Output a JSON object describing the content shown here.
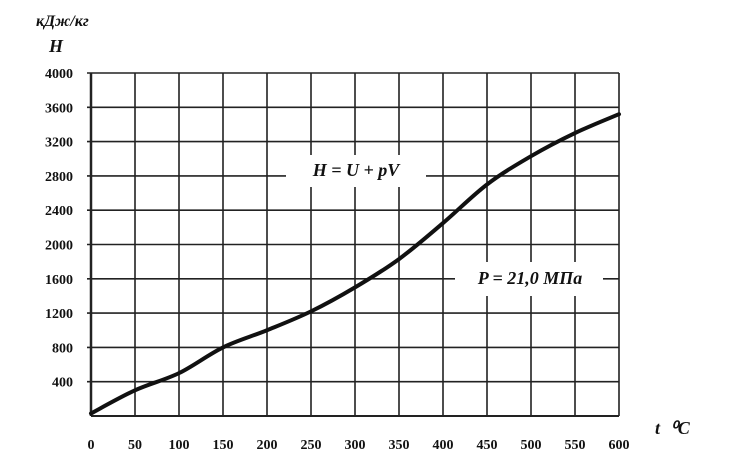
{
  "chart_data": {
    "type": "line",
    "title": "",
    "ylabel_unit": "кДж/кг",
    "ylabel": "H",
    "xlabel": "t ⁰C",
    "xlabel_main": "t",
    "xlabel_unit": "⁰C",
    "xlim": [
      0,
      600
    ],
    "ylim": [
      0,
      4000
    ],
    "grid": true,
    "x_ticks": [
      0,
      50,
      100,
      150,
      200,
      250,
      300,
      350,
      400,
      450,
      500,
      550,
      600
    ],
    "y_ticks": [
      400,
      800,
      1200,
      1600,
      2000,
      2400,
      2800,
      3200,
      3600,
      4000
    ],
    "series": [
      {
        "name": "H",
        "x": [
          0,
          50,
          100,
          150,
          200,
          250,
          300,
          350,
          400,
          450,
          500,
          550,
          600
        ],
        "y": [
          30,
          300,
          500,
          800,
          1000,
          1220,
          1500,
          1830,
          2250,
          2700,
          3030,
          3300,
          3520
        ],
        "color": "#111111"
      }
    ],
    "annotations": [
      {
        "text": "H = U + pV",
        "x": 210,
        "y": 2800
      },
      {
        "text": "P = 21,0 MПa",
        "x": 475,
        "y": 1600
      }
    ]
  }
}
